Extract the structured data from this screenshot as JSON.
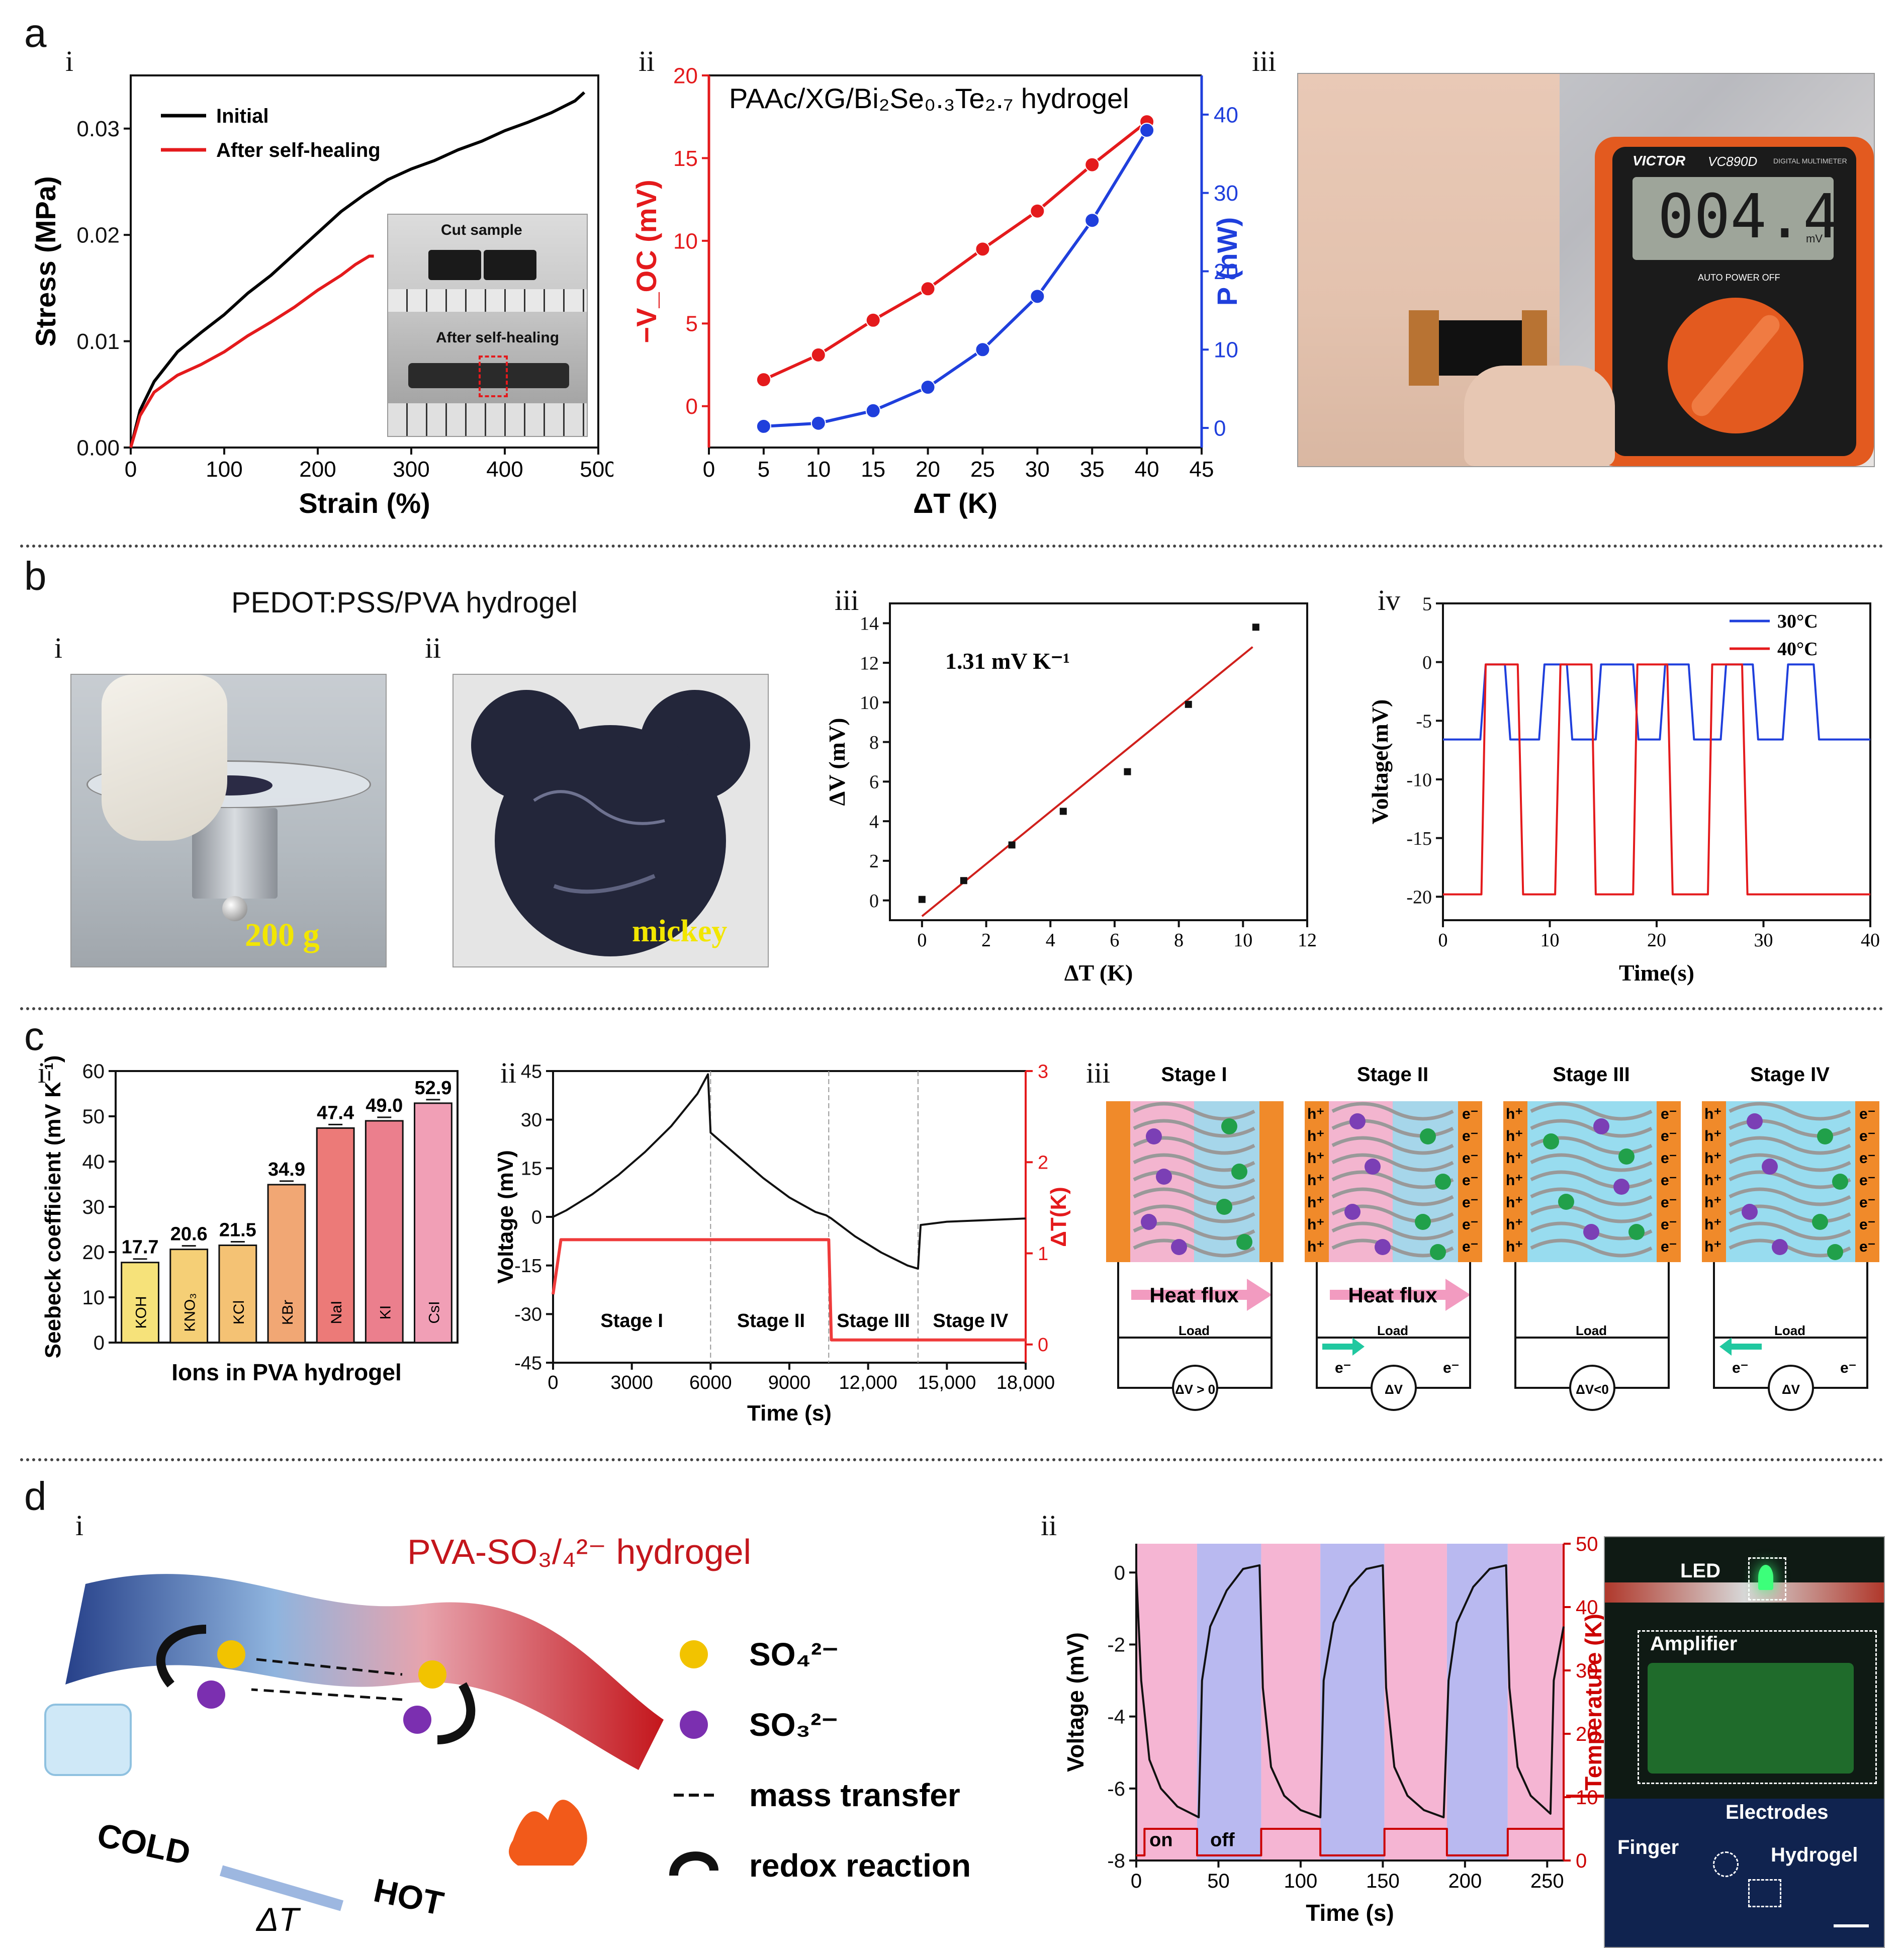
{
  "panel_labels": {
    "a": "a",
    "b": "b",
    "c": "c",
    "d": "d",
    "i": "i",
    "ii": "ii",
    "iii": "iii",
    "iv": "iv"
  },
  "b_title": "PEDOT:PSS/PVA hydrogel",
  "photos": {
    "a_iii": {
      "brand": "VICTOR",
      "model": "VC890D",
      "caption": "DIGITAL MULTIMETER",
      "display": "004.4",
      "unit": "mV",
      "mode": "AUTO POWER OFF"
    },
    "b_i": {
      "label": "200 g"
    },
    "b_ii": {
      "label": "mickey"
    },
    "d_ii": {
      "led": "LED",
      "amplifier": "Amplifier",
      "electrodes": "Electrodes",
      "finger": "Finger",
      "hydrogel": "Hydrogel"
    }
  },
  "inset_a_i": {
    "top": "Cut sample",
    "bottom": "After self-healing"
  },
  "c_iii": {
    "stages": [
      "Stage I",
      "Stage II",
      "Stage III",
      "Stage IV"
    ],
    "heat_flux": "Heat flux",
    "load": "Load",
    "dv_labels": [
      "ΔV > 0",
      "ΔV",
      "ΔV<0",
      "ΔV"
    ],
    "hole": "h⁺",
    "electron": "e⁻"
  },
  "d_i": {
    "title": "PVA-SO₃/₄²⁻ hydrogel",
    "cold": "COLD",
    "hot": "HOT",
    "delta": "ΔT",
    "legend": [
      {
        "symbol": "SO4",
        "label": "SO₄²⁻"
      },
      {
        "symbol": "SO3",
        "label": "SO₃²⁻"
      },
      {
        "symbol": "dash",
        "label": "mass transfer"
      },
      {
        "symbol": "arc",
        "label": "redox reaction"
      }
    ]
  },
  "colors": {
    "red": "#e41a1c",
    "blue": "#1f3fdc",
    "black": "#000000",
    "pink": "#f5b5d3",
    "lavender": "#b9b9f0"
  },
  "chart_data": [
    {
      "id": "a_i",
      "type": "line",
      "title": "",
      "xlabel": "Strain (%)",
      "ylabel": "Stress (MPa)",
      "xlim": [
        0,
        500
      ],
      "ylim": [
        0,
        0.035
      ],
      "xticks": [
        "0",
        "100",
        "200",
        "300",
        "400",
        "500"
      ],
      "yticks": [
        "0.00",
        "0.01",
        "0.02",
        "0.03"
      ],
      "series": [
        {
          "name": "Initial",
          "color": "#000000",
          "x": [
            0,
            10,
            25,
            50,
            75,
            100,
            125,
            150,
            175,
            200,
            225,
            250,
            275,
            300,
            325,
            350,
            375,
            400,
            425,
            450,
            475,
            485
          ],
          "y": [
            0,
            0.0035,
            0.0062,
            0.009,
            0.0108,
            0.0125,
            0.0145,
            0.0162,
            0.0182,
            0.0202,
            0.0222,
            0.0238,
            0.0252,
            0.0262,
            0.027,
            0.028,
            0.0288,
            0.0298,
            0.0306,
            0.0315,
            0.0326,
            0.0334
          ]
        },
        {
          "name": "After self-healing",
          "color": "#e41a1c",
          "x": [
            0,
            10,
            25,
            50,
            75,
            100,
            125,
            150,
            175,
            200,
            225,
            240,
            255,
            260
          ],
          "y": [
            0,
            0.003,
            0.0052,
            0.0068,
            0.0078,
            0.009,
            0.0105,
            0.0118,
            0.0132,
            0.0148,
            0.0162,
            0.0172,
            0.018,
            0.018
          ]
        }
      ]
    },
    {
      "id": "a_ii",
      "type": "line",
      "title": "PAAc/XG/Bi₂Se₀.₃Te₂.₇ hydrogel",
      "xlabel": "ΔT (K)",
      "ylabel": "−V_OC (mV)",
      "y2label": "P (nW)",
      "xlim": [
        0,
        45
      ],
      "ylim": [
        -2.5,
        20
      ],
      "y2lim": [
        -2.5,
        45
      ],
      "xticks": [
        "0",
        "5",
        "10",
        "15",
        "20",
        "25",
        "30",
        "35",
        "40",
        "45"
      ],
      "yticks": [
        "0",
        "5",
        "10",
        "15",
        "20"
      ],
      "y2ticks": [
        "0",
        "10",
        "20",
        "30",
        "40"
      ],
      "x": [
        5,
        10,
        15,
        20,
        25,
        30,
        35,
        40
      ],
      "series": [
        {
          "name": "−V_OC",
          "axis": "left",
          "color": "#e41a1c",
          "values": [
            1.6,
            3.1,
            5.2,
            7.1,
            9.5,
            11.8,
            14.6,
            17.2
          ]
        },
        {
          "name": "P",
          "axis": "right",
          "color": "#1f3fdc",
          "values": [
            0.2,
            0.6,
            2.2,
            5.2,
            10.0,
            16.8,
            26.5,
            38.0
          ]
        }
      ]
    },
    {
      "id": "b_iii",
      "type": "scatter",
      "title": "",
      "xlabel": "ΔT (K)",
      "ylabel": "ΔV (mV)",
      "annotation": "1.31 mV K⁻¹",
      "xlim": [
        -1,
        12
      ],
      "ylim": [
        -1,
        15
      ],
      "xticks": [
        "0",
        "2",
        "4",
        "6",
        "8",
        "10",
        "12"
      ],
      "yticks": [
        "0",
        "2",
        "4",
        "6",
        "8",
        "10",
        "12",
        "14"
      ],
      "x": [
        0,
        1.3,
        2.8,
        4.4,
        6.4,
        8.3,
        10.4
      ],
      "y": [
        0.05,
        1.0,
        2.8,
        4.5,
        6.5,
        9.9,
        13.8
      ],
      "fit": {
        "x": [
          0,
          10.3
        ],
        "y": [
          -0.8,
          12.8
        ],
        "color": "#d0201c"
      }
    },
    {
      "id": "b_iv",
      "type": "line",
      "title": "",
      "xlabel": "Time(s)",
      "ylabel": "Voltage(mV)",
      "xlim": [
        0,
        40
      ],
      "ylim": [
        -22,
        5
      ],
      "xticks": [
        "0",
        "10",
        "20",
        "30",
        "40"
      ],
      "yticks": [
        "5",
        "0",
        "-5",
        "-10",
        "-15",
        "-20"
      ],
      "series": [
        {
          "name": "30°C",
          "color": "#1f3fdc",
          "x": [
            0,
            3.5,
            4.0,
            5.8,
            6.3,
            9.0,
            9.5,
            11.6,
            12.1,
            14.3,
            14.8,
            17.8,
            18.3,
            20.3,
            20.8,
            23.0,
            23.5,
            26.0,
            26.5,
            29.0,
            29.5,
            31.8,
            32.3,
            34.7,
            35.2,
            40
          ],
          "values": [
            -6.6,
            -6.6,
            -0.2,
            -0.2,
            -6.6,
            -6.6,
            -0.2,
            -0.2,
            -6.6,
            -6.6,
            -0.2,
            -0.2,
            -6.6,
            -6.6,
            -0.2,
            -0.2,
            -6.6,
            -6.6,
            -0.2,
            -0.2,
            -6.6,
            -6.6,
            -0.2,
            -0.2,
            -6.6,
            -6.6
          ]
        },
        {
          "name": "40°C",
          "color": "#e41a1c",
          "x": [
            0,
            3.6,
            4.0,
            7.0,
            7.5,
            10.5,
            11.0,
            13.9,
            14.3,
            17.8,
            18.2,
            21.0,
            21.5,
            24.8,
            25.2,
            28.0,
            28.5,
            34.7,
            35.2,
            40
          ],
          "values": [
            -19.8,
            -19.8,
            -0.2,
            -0.2,
            -19.8,
            -19.8,
            -0.2,
            -0.2,
            -19.8,
            -19.8,
            -0.2,
            -0.2,
            -19.8,
            -19.8,
            -0.2,
            -0.2,
            -19.8,
            -19.8,
            -19.8,
            -19.8
          ]
        }
      ]
    },
    {
      "id": "c_i",
      "type": "bar",
      "title": "",
      "xlabel": "Ions in PVA hydrogel",
      "ylabel": "Seebeck coefficient (mV K⁻¹)",
      "ylim": [
        0,
        60
      ],
      "yticks": [
        "0",
        "10",
        "20",
        "30",
        "40",
        "50",
        "60"
      ],
      "categories": [
        "KOH",
        "KNO₃",
        "KCl",
        "KBr",
        "NaI",
        "KI",
        "CsI"
      ],
      "values": [
        17.7,
        20.6,
        21.5,
        34.9,
        47.4,
        49.0,
        52.9
      ],
      "value_labels": [
        "17.7",
        "20.6",
        "21.5",
        "34.9",
        "47.4",
        "49.0",
        "52.9"
      ],
      "bar_colors": [
        "#f6e27a",
        "#f5cf76",
        "#f4c274",
        "#f1a774",
        "#ec7a78",
        "#eb7f8d",
        "#f19fb6"
      ]
    },
    {
      "id": "c_ii",
      "type": "line",
      "title": "",
      "xlabel": "Time (s)",
      "ylabel": "Voltage (mV)",
      "y2label": "ΔT(K)",
      "xlim": [
        0,
        18000
      ],
      "ylim": [
        -45,
        45
      ],
      "y2lim": [
        -0.2,
        3
      ],
      "xticks": [
        "0",
        "3000",
        "6000",
        "9000",
        "12,000",
        "15,000",
        "18,000"
      ],
      "yticks": [
        "45",
        "30",
        "15",
        "0",
        "-15",
        "-30",
        "-45"
      ],
      "y2ticks": [
        "0",
        "1",
        "2",
        "3"
      ],
      "stage_labels": [
        "Stage I",
        "Stage II",
        "Stage III",
        "Stage IV"
      ],
      "series": [
        {
          "name": "Voltage",
          "axis": "left",
          "color": "#111111",
          "x": [
            0,
            500,
            1500,
            2500,
            3500,
            4500,
            5500,
            5900,
            6000,
            7000,
            8000,
            9000,
            10000,
            10400,
            10600,
            11500,
            12500,
            13500,
            13900,
            14000,
            15000,
            16500,
            18000
          ],
          "values": [
            0,
            2,
            7,
            13,
            20,
            28,
            38,
            44,
            26,
            19,
            12,
            6,
            1.5,
            0.5,
            -0.5,
            -6,
            -11,
            -15,
            -16,
            -2.5,
            -1.5,
            -1,
            -0.5
          ]
        },
        {
          "name": "ΔT",
          "axis": "right",
          "color": "#ef3b3b",
          "x": [
            0,
            300,
            10500,
            10600,
            18000
          ],
          "values": [
            0.55,
            1.15,
            1.15,
            0.05,
            0.05
          ]
        }
      ]
    },
    {
      "id": "d_ii",
      "type": "line",
      "title": "",
      "xlabel": "Time (s)",
      "ylabel": "Voltage (mV)",
      "y2label": "Temperature (K)",
      "xlim": [
        0,
        260
      ],
      "ylim": [
        -8,
        0.8
      ],
      "y2lim": [
        0,
        50
      ],
      "xticks": [
        "0",
        "50",
        "100",
        "150",
        "200",
        "250"
      ],
      "yticks": [
        "0",
        "-2",
        "-4",
        "-6",
        "-8"
      ],
      "y2ticks": [
        "0",
        "10",
        "20",
        "30",
        "40",
        "50"
      ],
      "annotations": [
        "on",
        "off"
      ],
      "series": [
        {
          "name": "Voltage",
          "axis": "left",
          "color": "#111111",
          "x": [
            0,
            3,
            8,
            15,
            25,
            38,
            40,
            45,
            55,
            65,
            75,
            77,
            82,
            90,
            100,
            112,
            114,
            120,
            130,
            140,
            150,
            152,
            157,
            165,
            175,
            187,
            190,
            195,
            205,
            215,
            225,
            227,
            232,
            240,
            252,
            254,
            260
          ],
          "values": [
            0,
            -3.0,
            -5.2,
            -6.0,
            -6.5,
            -6.8,
            -3.0,
            -1.5,
            -0.5,
            0.1,
            0.2,
            -3.2,
            -5.4,
            -6.2,
            -6.6,
            -6.8,
            -3.0,
            -1.4,
            -0.4,
            0.1,
            0.2,
            -3.2,
            -5.4,
            -6.2,
            -6.6,
            -6.8,
            -3.0,
            -1.4,
            -0.4,
            0.1,
            0.2,
            -3.2,
            -5.4,
            -6.2,
            -6.7,
            -3.0,
            -1.5
          ]
        },
        {
          "name": "Temperature",
          "axis": "right",
          "color": "#cc0000",
          "x": [
            0,
            5,
            5,
            37,
            37,
            76,
            76,
            112,
            112,
            151,
            151,
            189,
            189,
            226,
            226,
            260
          ],
          "values": [
            0.8,
            0.8,
            5.0,
            5.0,
            0.8,
            0.8,
            5.0,
            5.0,
            0.8,
            0.8,
            5.0,
            5.0,
            0.8,
            0.8,
            5.0,
            5.0
          ]
        }
      ],
      "bands": {
        "on_color": "#f5b5d3",
        "off_color": "#b9b9f0",
        "boundaries": [
          0,
          37,
          76,
          112,
          151,
          189,
          226,
          260
        ]
      }
    }
  ]
}
